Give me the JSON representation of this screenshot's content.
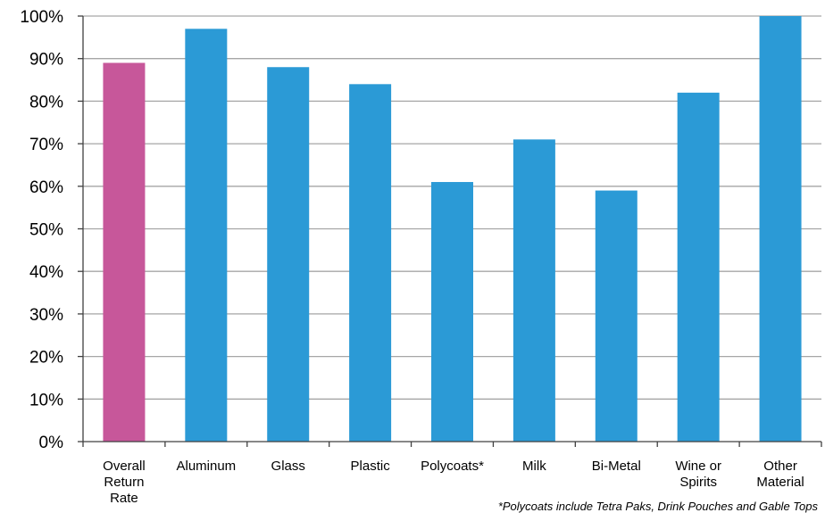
{
  "chart_data": {
    "type": "bar",
    "categories": [
      [
        "Overall",
        "Return",
        "Rate"
      ],
      [
        "Aluminum"
      ],
      [
        "Glass"
      ],
      [
        "Plastic"
      ],
      [
        "Polycoats*"
      ],
      [
        "Milk"
      ],
      [
        "Bi-Metal"
      ],
      [
        "Wine or",
        "Spirits"
      ],
      [
        "Other",
        "Material"
      ]
    ],
    "values": [
      89,
      97,
      88,
      84,
      61,
      71,
      59,
      82,
      100
    ],
    "bar_colors": [
      "#C7579A",
      "#2B9AD6",
      "#2B9AD6",
      "#2B9AD6",
      "#2B9AD6",
      "#2B9AD6",
      "#2B9AD6",
      "#2B9AD6",
      "#2B9AD6"
    ],
    "ylim": [
      0,
      100
    ],
    "yticks": [
      0,
      10,
      20,
      30,
      40,
      50,
      60,
      70,
      80,
      90,
      100
    ],
    "ytick_labels": [
      "0%",
      "10%",
      "20%",
      "30%",
      "40%",
      "50%",
      "60%",
      "70%",
      "80%",
      "90%",
      "100%"
    ],
    "grid": true,
    "grid_color": "#A6A6A6",
    "title": "",
    "xlabel": "",
    "ylabel": "",
    "footnote": "*Polycoats include Tetra Paks, Drink Pouches  and Gable Tops"
  }
}
